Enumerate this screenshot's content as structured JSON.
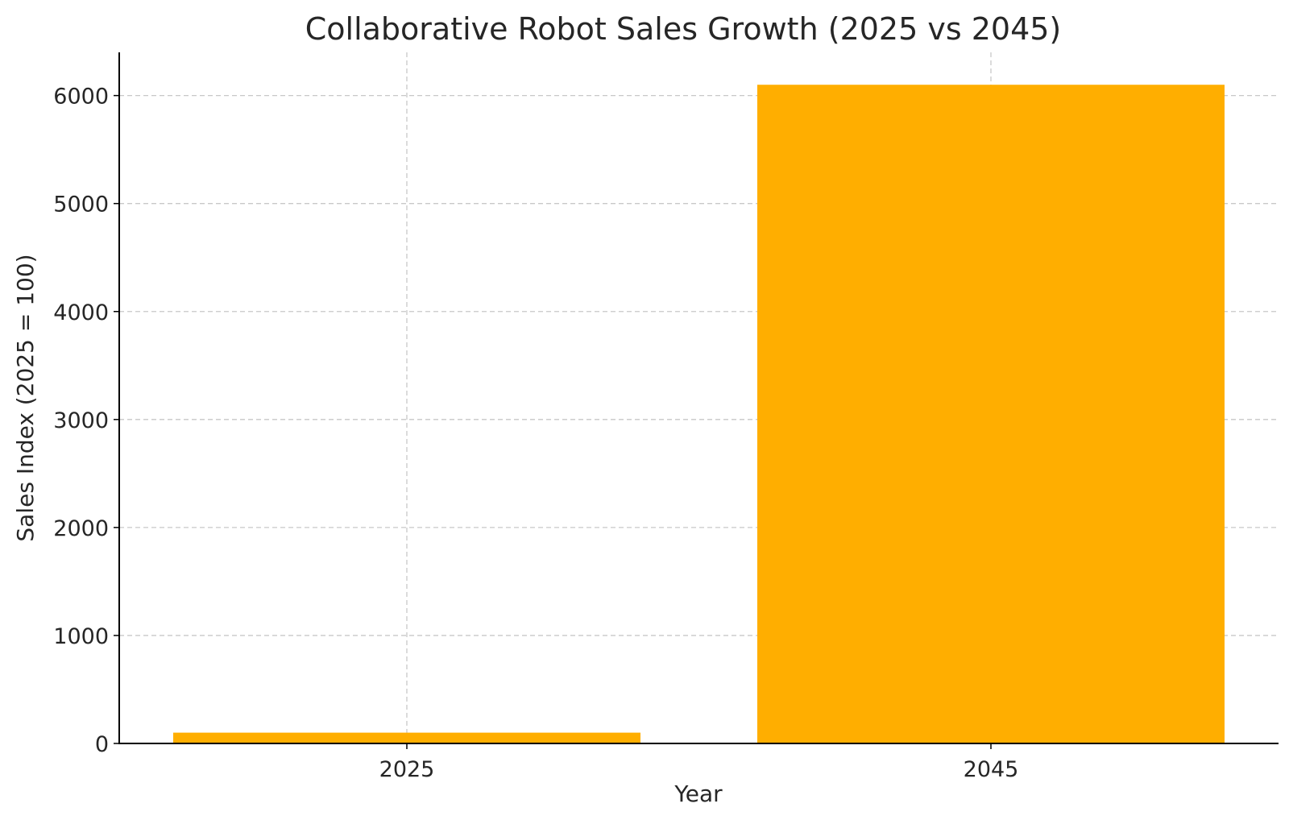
{
  "chart_data": {
    "type": "bar",
    "title": "Collaborative Robot Sales Growth (2025 vs 2045)",
    "xlabel": "Year",
    "ylabel": "Sales Index (2025 = 100)",
    "categories": [
      "2025",
      "2045"
    ],
    "values": [
      100,
      6100
    ],
    "ylim": [
      0,
      6400
    ],
    "yticks": [
      0,
      1000,
      2000,
      3000,
      4000,
      5000,
      6000
    ],
    "grid": true,
    "bar_color": "#FFAE00"
  }
}
